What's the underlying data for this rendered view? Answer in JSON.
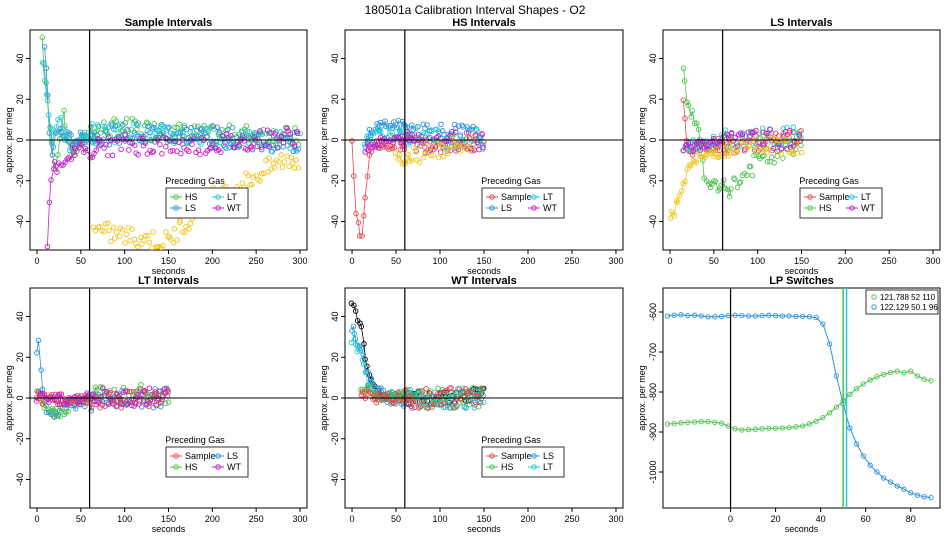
{
  "title": "180501a   Calibration Interval Shapes - O2",
  "legend_title": "Preceding Gas",
  "colors": {
    "Sample": "#e8474c",
    "HS": "#4cc34c",
    "LS": "#2f8fdc",
    "LT": "#22c9d6",
    "WT": "#c51fc8",
    "ref": "#000000",
    "gold": "#f0c419"
  },
  "chart_data": [
    {
      "type": "scatter",
      "title": "Sample Intervals",
      "xlabel": "seconds",
      "ylabel": "approx. per meg",
      "xlim": [
        -8,
        308
      ],
      "ylim": [
        -54,
        54
      ],
      "xticks": [
        0,
        50,
        100,
        150,
        200,
        250,
        300
      ],
      "yticks": [
        -40,
        -20,
        0,
        20,
        40
      ],
      "vline": 60,
      "hline": 0,
      "legend": {
        "title": "Preceding Gas",
        "entries": [
          "HS",
          "LT",
          "LS",
          "WT"
        ]
      },
      "series": [
        {
          "name": "HS",
          "x": [
            6,
            10,
            14,
            20,
            30,
            40,
            60,
            100,
            150,
            200,
            250,
            300
          ],
          "y": [
            50,
            30,
            10,
            -15,
            12,
            -8,
            5,
            6,
            4,
            2,
            3,
            1
          ]
        },
        {
          "name": "LS",
          "x": [
            8,
            12,
            16,
            22,
            40,
            60,
            100,
            150,
            200,
            250,
            300
          ],
          "y": [
            45,
            25,
            -10,
            5,
            0,
            2,
            3,
            4,
            2,
            0,
            -2
          ]
        },
        {
          "name": "LT",
          "x": [
            7,
            12,
            18,
            25,
            40,
            60,
            100,
            150,
            200,
            250,
            300
          ],
          "y": [
            40,
            20,
            0,
            10,
            -5,
            3,
            4,
            2,
            1,
            -1,
            0
          ]
        },
        {
          "name": "WT",
          "x": [
            12,
            14,
            16,
            20,
            30,
            40,
            60,
            100,
            150,
            200,
            250,
            300
          ],
          "y": [
            -54,
            -30,
            -20,
            -12,
            -15,
            -5,
            -4,
            -2,
            -3,
            -2,
            0,
            2
          ]
        },
        {
          "name": "gold",
          "x": [
            65,
            70,
            150,
            190,
            220,
            240,
            260,
            280,
            300
          ],
          "y": [
            -40,
            -45,
            -50,
            -30,
            -25,
            -20,
            -15,
            -10,
            -10
          ]
        }
      ]
    },
    {
      "type": "scatter",
      "title": "HS Intervals",
      "xlabel": "seconds",
      "ylabel": "approx. per meg",
      "xlim": [
        -8,
        308
      ],
      "ylim": [
        -54,
        54
      ],
      "xticks": [
        0,
        50,
        100,
        150,
        200,
        250,
        300
      ],
      "yticks": [
        -40,
        -20,
        0,
        20,
        40
      ],
      "vline": 60,
      "hline": 0,
      "legend": {
        "title": "Preceding Gas",
        "entries": [
          "Sample",
          "LT",
          "LS",
          "WT"
        ]
      },
      "series": [
        {
          "name": "Sample",
          "x": [
            0,
            5,
            10,
            15,
            20,
            30,
            50,
            100,
            150
          ],
          "y": [
            1,
            -40,
            -50,
            -30,
            -5,
            -2,
            -2,
            -1,
            -1
          ]
        },
        {
          "name": "LS",
          "x": [
            15,
            20,
            40,
            60,
            80,
            100,
            120,
            150
          ],
          "y": [
            -5,
            5,
            8,
            6,
            5,
            4,
            3,
            2
          ]
        },
        {
          "name": "LT",
          "x": [
            15,
            20,
            40,
            60,
            100,
            150
          ],
          "y": [
            -3,
            2,
            3,
            2,
            1,
            0
          ]
        },
        {
          "name": "WT",
          "x": [
            15,
            20,
            40,
            60,
            100,
            150
          ],
          "y": [
            -4,
            -2,
            -1,
            0,
            0,
            0
          ]
        },
        {
          "name": "gold",
          "x": [
            50,
            60,
            70,
            80,
            90,
            100,
            120,
            140
          ],
          "y": [
            -7,
            -10,
            -8,
            -5,
            -4,
            -6,
            -3,
            -2
          ]
        }
      ]
    },
    {
      "type": "scatter",
      "title": "LS Intervals",
      "xlabel": "seconds",
      "ylabel": "approx. per meg",
      "xlim": [
        -8,
        308
      ],
      "ylim": [
        -54,
        54
      ],
      "xticks": [
        0,
        50,
        100,
        150,
        200,
        250,
        300
      ],
      "yticks": [
        -40,
        -20,
        0,
        20,
        40
      ],
      "vline": 60,
      "hline": 0,
      "legend": {
        "title": "Preceding Gas",
        "entries": [
          "Sample",
          "LT",
          "HS",
          "WT"
        ]
      },
      "series": [
        {
          "name": "Sample",
          "x": [
            15,
            20,
            40,
            60,
            100,
            150
          ],
          "y": [
            22,
            -5,
            -3,
            -2,
            -1,
            0
          ]
        },
        {
          "name": "HS",
          "x": [
            15,
            20,
            30,
            40,
            60,
            80,
            100,
            120,
            150
          ],
          "y": [
            37,
            15,
            10,
            -20,
            -25,
            -20,
            -10,
            -8,
            0
          ]
        },
        {
          "name": "LT",
          "x": [
            15,
            20,
            40,
            60,
            100,
            150
          ],
          "y": [
            -5,
            -3,
            -2,
            0,
            1,
            2
          ]
        },
        {
          "name": "WT",
          "x": [
            15,
            20,
            40,
            60,
            100,
            150
          ],
          "y": [
            -6,
            -4,
            -2,
            -1,
            0,
            1
          ]
        },
        {
          "name": "gold",
          "x": [
            0,
            5,
            10,
            15,
            20,
            30,
            50,
            100,
            150
          ],
          "y": [
            -40,
            -35,
            -28,
            -20,
            -15,
            -10,
            -6,
            -3,
            -2
          ]
        }
      ]
    },
    {
      "type": "scatter",
      "title": "LT Intervals",
      "xlabel": "seconds",
      "ylabel": "approx. per meg",
      "xlim": [
        -8,
        308
      ],
      "ylim": [
        -54,
        54
      ],
      "xticks": [
        0,
        50,
        100,
        150,
        200,
        250,
        300
      ],
      "yticks": [
        -40,
        -20,
        0,
        20,
        40
      ],
      "vline": 60,
      "hline": 0,
      "legend": {
        "title": "Preceding Gas",
        "entries": [
          "Sample",
          "LS",
          "HS",
          "WT"
        ]
      },
      "series": [
        {
          "name": "LS",
          "x": [
            0,
            3,
            5,
            10,
            20,
            40,
            60,
            100,
            150
          ],
          "y": [
            25,
            28,
            10,
            -5,
            -8,
            -3,
            -2,
            -1,
            0
          ]
        },
        {
          "name": "HS",
          "x": [
            0,
            10,
            20,
            40,
            60,
            100,
            150
          ],
          "y": [
            2,
            -5,
            -8,
            -3,
            1,
            2,
            1
          ]
        },
        {
          "name": "Sample",
          "x": [
            0,
            20,
            40,
            60,
            100,
            150
          ],
          "y": [
            0,
            -1,
            -1,
            0,
            0,
            0
          ]
        },
        {
          "name": "WT",
          "x": [
            0,
            20,
            40,
            60,
            100,
            150
          ],
          "y": [
            1,
            0,
            -1,
            0,
            0,
            0
          ]
        }
      ]
    },
    {
      "type": "scatter",
      "title": "WT Intervals",
      "xlabel": "seconds",
      "ylabel": "approx. per meg",
      "xlim": [
        -8,
        308
      ],
      "ylim": [
        -54,
        54
      ],
      "xticks": [
        0,
        50,
        100,
        150,
        200,
        250,
        300
      ],
      "yticks": [
        -40,
        -20,
        0,
        20,
        40
      ],
      "vline": 60,
      "hline": 0,
      "legend": {
        "title": "Preceding Gas",
        "entries": [
          "Sample",
          "LS",
          "HS",
          "LT"
        ]
      },
      "series": [
        {
          "name": "ref",
          "x": [
            0,
            5,
            10,
            15,
            20,
            25,
            30,
            40,
            60,
            100,
            150
          ],
          "y": [
            48,
            40,
            37,
            20,
            10,
            5,
            3,
            0,
            0,
            0,
            2
          ]
        },
        {
          "name": "LS",
          "x": [
            0,
            5,
            10,
            15,
            20,
            30,
            40,
            60,
            100,
            150
          ],
          "y": [
            35,
            30,
            25,
            15,
            8,
            3,
            0,
            -1,
            0,
            0
          ]
        },
        {
          "name": "LT",
          "x": [
            0,
            5,
            10,
            20,
            40,
            60,
            100,
            150
          ],
          "y": [
            30,
            28,
            20,
            5,
            0,
            0,
            0,
            0
          ]
        },
        {
          "name": "HS",
          "x": [
            10,
            20,
            40,
            60,
            100,
            150
          ],
          "y": [
            5,
            2,
            1,
            0,
            0,
            0
          ]
        },
        {
          "name": "Sample",
          "x": [
            10,
            20,
            40,
            60,
            100,
            150
          ],
          "y": [
            3,
            1,
            0,
            0,
            0,
            0
          ]
        }
      ]
    },
    {
      "type": "line",
      "title": "LP Switches",
      "xlabel": "seconds",
      "ylabel": "approx. per meg",
      "xlim": [
        -30,
        93
      ],
      "ylim": [
        -1090,
        -540
      ],
      "xticks": [
        0,
        20,
        40,
        60,
        80
      ],
      "yticks": [
        -1000,
        -900,
        -800,
        -700,
        -600
      ],
      "vline": 0,
      "hline": null,
      "extra_vlines": [
        {
          "x": 50,
          "color": "#4cc34c"
        },
        {
          "x": 51.5,
          "color": "#22c9d6"
        }
      ],
      "legend": {
        "position": "top-right",
        "entries": [
          "121.788 52 110",
          "122.129 50.1 96"
        ]
      },
      "series": [
        {
          "name": "121.788 52 110",
          "color": "#4cc34c",
          "x": [
            -28,
            -25,
            -22,
            -19,
            -16,
            -13,
            -10,
            -7,
            -4,
            -1,
            2,
            5,
            8,
            11,
            14,
            17,
            20,
            23,
            26,
            29,
            32,
            35,
            38,
            41,
            44,
            47,
            50,
            53,
            56,
            59,
            62,
            65,
            68,
            71,
            74,
            77,
            80,
            83,
            86,
            89
          ],
          "y": [
            -880,
            -879,
            -877,
            -876,
            -875,
            -874,
            -874,
            -876,
            -878,
            -885,
            -892,
            -895,
            -894,
            -893,
            -892,
            -891,
            -891,
            -890,
            -889,
            -887,
            -885,
            -880,
            -873,
            -864,
            -852,
            -838,
            -822,
            -806,
            -792,
            -780,
            -770,
            -762,
            -756,
            -751,
            -748,
            -752,
            -748,
            -760,
            -768,
            -772
          ]
        },
        {
          "name": "122.129 50.1 96",
          "color": "#2f8fdc",
          "x": [
            -28,
            -25,
            -22,
            -19,
            -16,
            -13,
            -10,
            -7,
            -4,
            -1,
            2,
            5,
            8,
            11,
            14,
            17,
            20,
            23,
            26,
            29,
            32,
            35,
            38,
            41,
            44,
            47,
            50,
            53,
            56,
            59,
            62,
            65,
            68,
            71,
            74,
            77,
            80,
            83,
            86,
            89
          ],
          "y": [
            -610,
            -608,
            -607,
            -609,
            -608,
            -610,
            -612,
            -612,
            -611,
            -609,
            -608,
            -609,
            -610,
            -610,
            -609,
            -608,
            -609,
            -610,
            -610,
            -611,
            -611,
            -612,
            -614,
            -630,
            -680,
            -760,
            -830,
            -890,
            -930,
            -960,
            -983,
            -1000,
            -1015,
            -1025,
            -1035,
            -1043,
            -1052,
            -1058,
            -1062,
            -1064
          ]
        }
      ]
    }
  ]
}
